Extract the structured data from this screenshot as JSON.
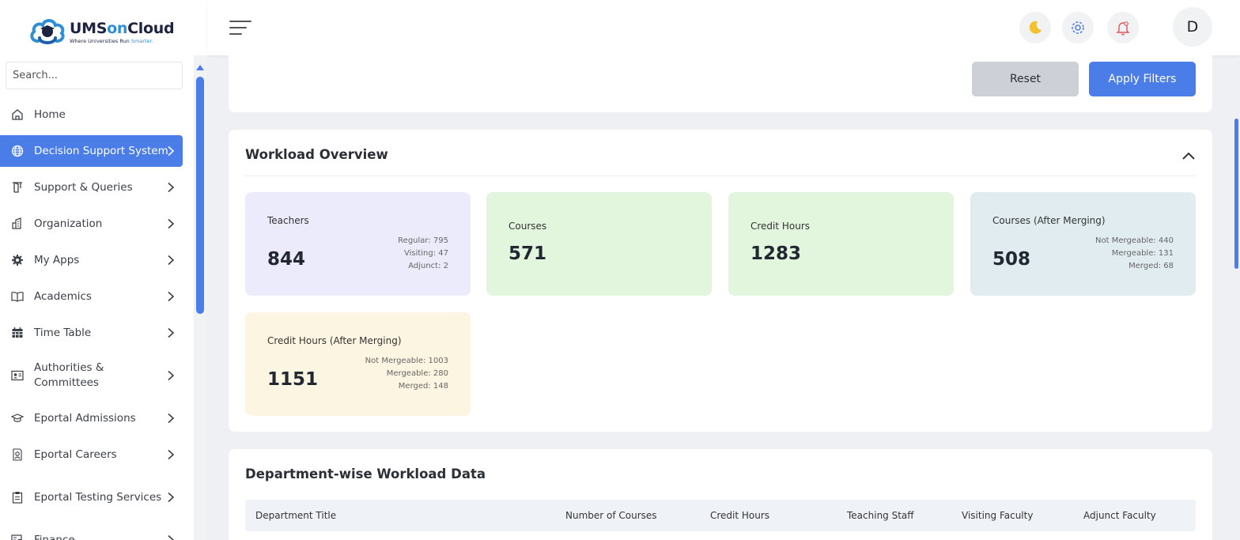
{
  "brand": {
    "title_a": "UMS",
    "title_b": "on",
    "title_c": "Cloud",
    "tagline_a": "Where Universities Run ",
    "tagline_b": "Smarter."
  },
  "sidebar": {
    "search_placeholder": "Search...",
    "items": [
      {
        "label": "Home",
        "icon": "home-icon",
        "chevron": false
      },
      {
        "label": "Decision Support System",
        "icon": "globe-icon",
        "chevron": true,
        "active": true
      },
      {
        "label": "Support & Queries",
        "icon": "door-icon",
        "chevron": true
      },
      {
        "label": "Organization",
        "icon": "building-icon",
        "chevron": true
      },
      {
        "label": "My Apps",
        "icon": "gear-icon",
        "chevron": true
      },
      {
        "label": "Academics",
        "icon": "book-icon",
        "chevron": true
      },
      {
        "label": "Time Table",
        "icon": "calendar-icon",
        "chevron": true
      },
      {
        "label": "Authorities & Committees",
        "icon": "id-card-icon",
        "chevron": true
      },
      {
        "label": "Eportal Admissions",
        "icon": "graduation-cap-icon",
        "chevron": true
      },
      {
        "label": "Eportal Careers",
        "icon": "career-icon",
        "chevron": true
      },
      {
        "label": "Eportal Testing Services",
        "icon": "clipboard-icon",
        "chevron": true
      },
      {
        "label": "Finance",
        "icon": "finance-icon",
        "chevron": true
      }
    ]
  },
  "topbar": {
    "avatar_initial": "D"
  },
  "filters": {
    "reset_label": "Reset",
    "apply_label": "Apply Filters"
  },
  "overview": {
    "title": "Workload Overview",
    "stats": [
      {
        "label": "Teachers",
        "value": "844",
        "breakdown": [
          "Regular: 795",
          "Visiting: 47",
          "Adjunct: 2"
        ],
        "color": "#ecebfb"
      },
      {
        "label": "Courses",
        "value": "571",
        "breakdown": [],
        "color": "#e2f5dd"
      },
      {
        "label": "Credit Hours",
        "value": "1283",
        "breakdown": [],
        "color": "#e2f5dd"
      },
      {
        "label": "Courses (After Merging)",
        "value": "508",
        "breakdown": [
          "Not Mergeable: 440",
          "Mergeable: 131",
          "Merged: 68"
        ],
        "color": "#e1ecf1"
      },
      {
        "label": "Credit Hours (After Merging)",
        "value": "1151",
        "breakdown": [
          "Not Mergeable: 1003",
          "Mergeable: 280",
          "Merged: 148"
        ],
        "color": "#fcf5e1"
      }
    ]
  },
  "department": {
    "title": "Department-wise Workload Data",
    "columns": [
      "Department Title",
      "Number of Courses",
      "Credit Hours",
      "Teaching Staff",
      "Visiting Faculty",
      "Adjunct Faculty"
    ]
  },
  "colors": {
    "accent": "#4a7de8",
    "sidebar_active": "#4a7de8"
  }
}
